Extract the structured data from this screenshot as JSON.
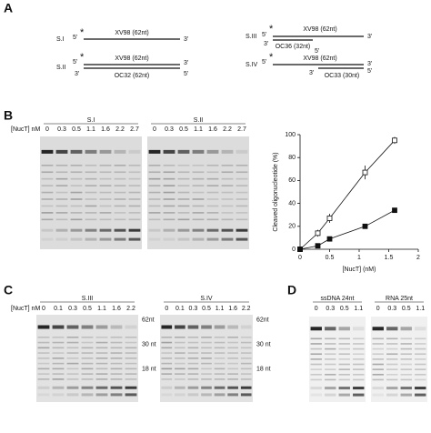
{
  "panel_a": {
    "label": "A",
    "constructs": [
      {
        "name": "S.I",
        "mark": "*",
        "top_label": "XV98 (62nt)",
        "top_ends": [
          "5'",
          "3'"
        ]
      },
      {
        "name": "S.II",
        "mark": "*",
        "top_label": "XV98 (62nt)",
        "top_ends": [
          "5'",
          "3'"
        ],
        "bottom_label": "OC32 (62nt)",
        "bottom_ends": [
          "3'",
          "5'"
        ]
      },
      {
        "name": "S.III",
        "mark": "*",
        "top_label": "XV98 (62nt)",
        "top_ends": [
          "5'",
          "3'"
        ],
        "bottom_label": "OC36 (32nt)",
        "bottom_ends": [
          "3'",
          "5'"
        ]
      },
      {
        "name": "S.IV",
        "mark": "*",
        "top_label": "XV98 (62nt)",
        "top_ends": [
          "5'",
          "3'"
        ],
        "bottom_label": "OC33 (30nt)",
        "bottom_ends": [
          "3'",
          "5'"
        ]
      }
    ]
  },
  "panel_b": {
    "label": "B",
    "conc_label": "[NucT] nM",
    "gels": [
      {
        "title": "S.I",
        "lanes": [
          0,
          0.3,
          0.5,
          1.1,
          1.6,
          2.2,
          2.7
        ]
      },
      {
        "title": "S.II",
        "lanes": [
          0,
          0.3,
          0.5,
          1.1,
          1.6,
          2.2,
          2.7
        ]
      }
    ]
  },
  "chart_data": {
    "type": "line",
    "x_label": "[NucT] (nM)",
    "y_label": "Cleaved oligonucleotide (%)",
    "x": [
      0,
      0.3,
      0.5,
      1.1,
      1.6
    ],
    "series": [
      {
        "color": "#111111",
        "marker": "open-square",
        "values": [
          0,
          14,
          27,
          67,
          95
        ],
        "errors": [
          0,
          3,
          4,
          6,
          3
        ]
      },
      {
        "color": "#111111",
        "marker": "filled-square",
        "values": [
          0,
          3,
          9,
          20,
          34
        ],
        "errors": [
          0,
          1,
          2,
          2,
          1
        ]
      }
    ],
    "xlim": [
      0,
      2
    ],
    "xticks": [
      0,
      0.5,
      1,
      1.5,
      2
    ],
    "ylim": [
      0,
      100
    ],
    "yticks": [
      0,
      20,
      40,
      60,
      80,
      100
    ]
  },
  "panel_c": {
    "label": "C",
    "conc_label": "[NucT] nM",
    "gels": [
      {
        "title": "S.III",
        "lanes": [
          0,
          0.1,
          0.3,
          0.5,
          1.1,
          1.6,
          2.2
        ],
        "markers": [
          "62nt",
          "30 nt",
          "18 nt"
        ]
      },
      {
        "title": "S.IV",
        "lanes": [
          0,
          0.1,
          0.3,
          0.5,
          1.1,
          1.6,
          2.2
        ],
        "markers": [
          "62nt",
          "30 nt",
          "18 nt"
        ]
      }
    ]
  },
  "panel_d": {
    "label": "D",
    "gels": [
      {
        "title": "ssDNA 24nt",
        "lanes": [
          0,
          0.3,
          0.5,
          1.1
        ]
      },
      {
        "title": "RNA 25nt",
        "lanes": [
          0,
          0.3,
          0.5,
          1.1
        ]
      }
    ]
  }
}
